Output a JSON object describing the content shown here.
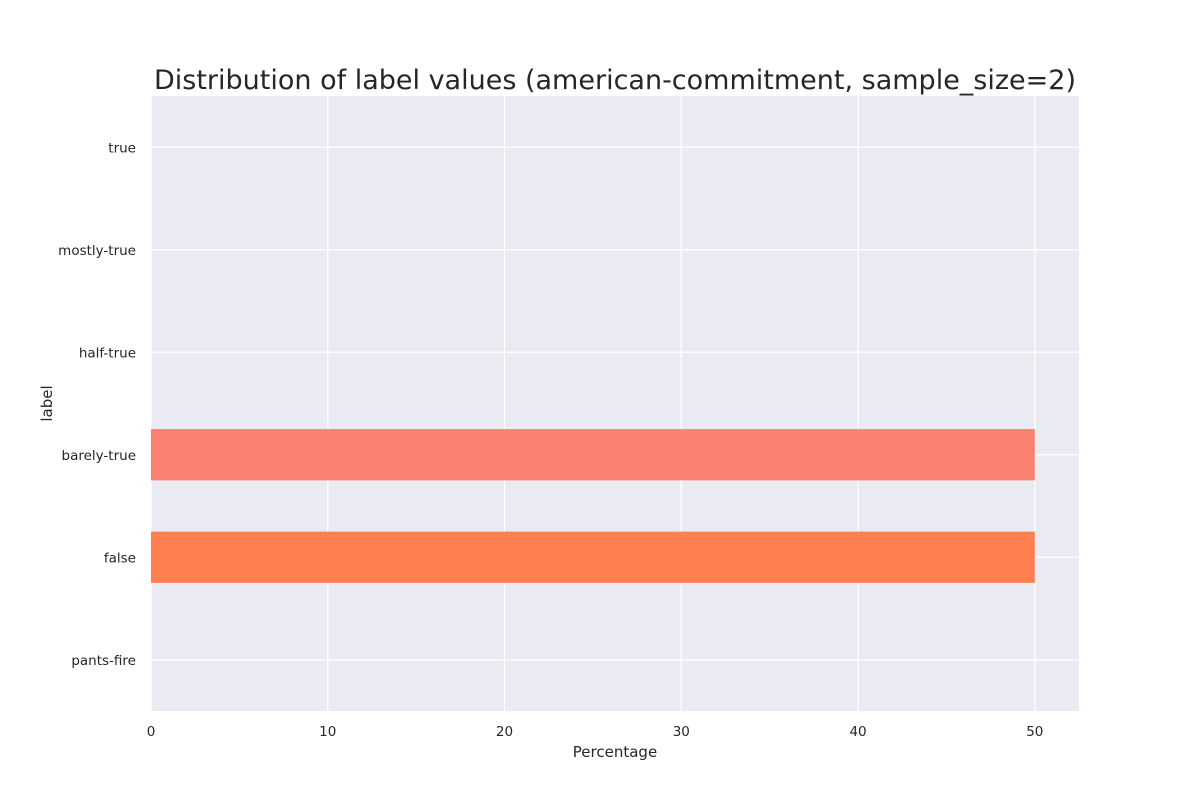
{
  "chart_data": {
    "type": "bar",
    "orientation": "horizontal",
    "title": "Distribution of label values (american-commitment, sample_size=2)",
    "xlabel": "Percentage",
    "ylabel": "label",
    "categories": [
      "pants-fire",
      "false",
      "barely-true",
      "half-true",
      "mostly-true",
      "true"
    ],
    "values": [
      0,
      50,
      50,
      0,
      0,
      0
    ],
    "bar_colors": [
      "#ff4500",
      "#ff7f50",
      "#fa8072",
      "#ffd700",
      "#9acd32",
      "#32cd32"
    ],
    "xlim": [
      0,
      52.5
    ],
    "xticks": [
      0,
      10,
      20,
      30,
      40,
      50
    ],
    "grid": true,
    "background_color": "#eaeaf2",
    "grid_color": "#ffffff"
  }
}
